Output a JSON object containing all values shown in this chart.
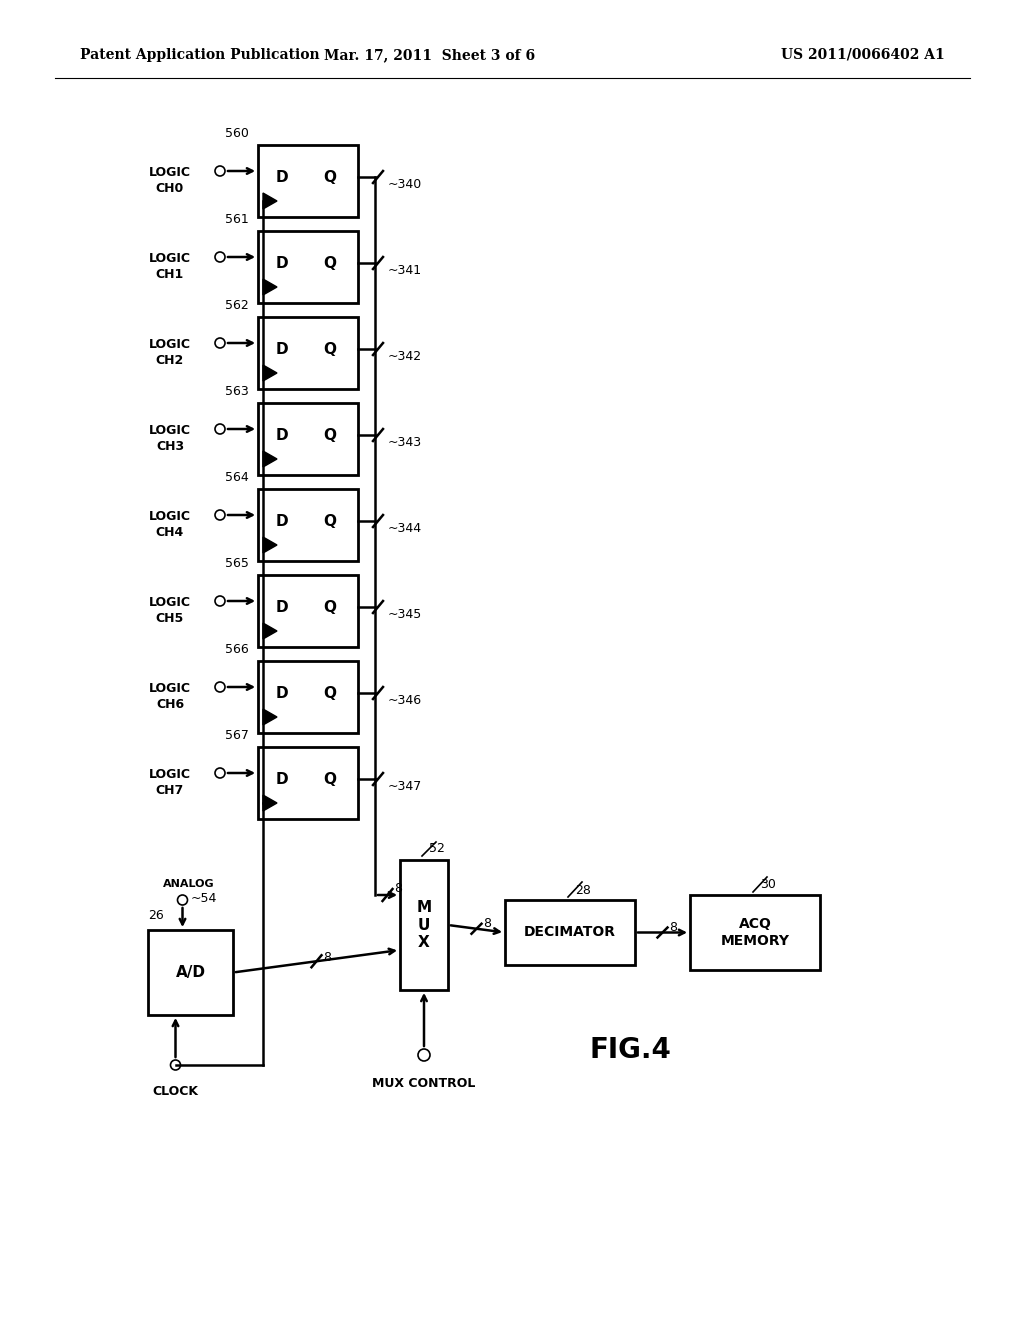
{
  "bg_color": "#ffffff",
  "header_left": "Patent Application Publication",
  "header_center": "Mar. 17, 2011  Sheet 3 of 6",
  "header_right": "US 2011/0066402 A1",
  "fig_label": "FIG.4",
  "channels": [
    {
      "label_top": "LOGIC",
      "label_bot": "CH0",
      "num": "560",
      "ff_num": "340"
    },
    {
      "label_top": "LOGIC",
      "label_bot": "CH1",
      "num": "561",
      "ff_num": "341"
    },
    {
      "label_top": "LOGIC",
      "label_bot": "CH2",
      "num": "562",
      "ff_num": "342"
    },
    {
      "label_top": "LOGIC",
      "label_bot": "CH3",
      "num": "563",
      "ff_num": "343"
    },
    {
      "label_top": "LOGIC",
      "label_bot": "CH4",
      "num": "564",
      "ff_num": "344"
    },
    {
      "label_top": "LOGIC",
      "label_bot": "CH5",
      "num": "565",
      "ff_num": "345"
    },
    {
      "label_top": "LOGIC",
      "label_bot": "CH6",
      "num": "566",
      "ff_num": "346"
    },
    {
      "label_top": "LOGIC",
      "label_bot": "CH7",
      "num": "567",
      "ff_num": "347"
    }
  ],
  "mux_label": "M\nU\nX",
  "mux_num": "52",
  "decimator_label": "DECIMATOR",
  "decimator_num": "28",
  "acq_label": "ACQ\nMEMORY",
  "acq_num": "30",
  "ad_label": "A/D",
  "ad_num": "26",
  "analog_label": "ANALOG",
  "analog_num": "54",
  "clock_label": "CLOCK",
  "mux_control_label": "MUX CONTROL"
}
